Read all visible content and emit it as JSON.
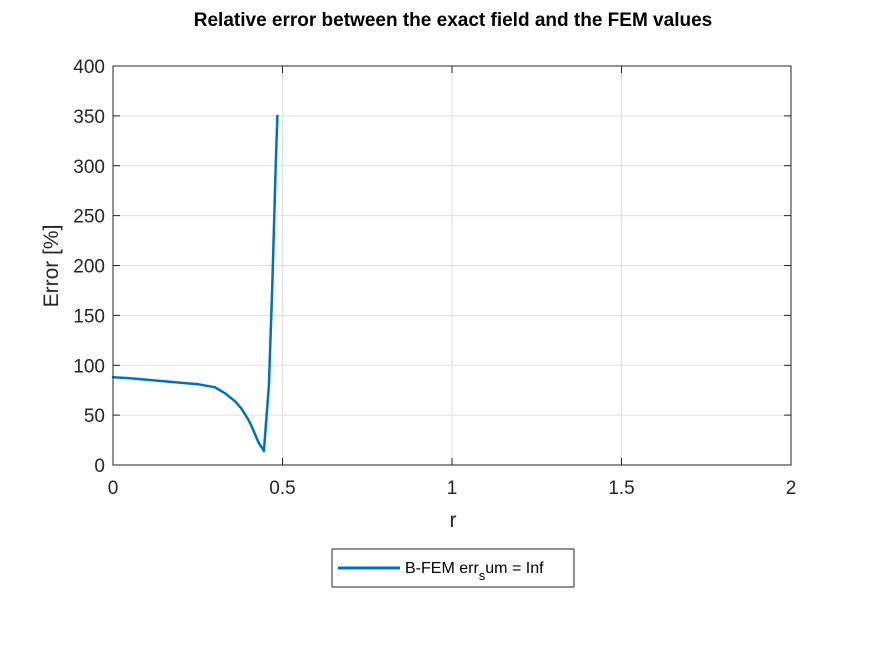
{
  "chart_data": {
    "type": "line",
    "title": "Relative error between the exact field and the FEM values",
    "xlabel": "r",
    "ylabel": "Error [%]",
    "xlim": [
      0,
      2
    ],
    "ylim": [
      0,
      400
    ],
    "xticks": [
      0,
      0.5,
      1,
      1.5,
      2
    ],
    "xtick_labels": [
      "0",
      "0.5",
      "1",
      "1.5",
      "2"
    ],
    "yticks": [
      0,
      50,
      100,
      150,
      200,
      250,
      300,
      350,
      400
    ],
    "ytick_labels": [
      "0",
      "50",
      "100",
      "150",
      "200",
      "250",
      "300",
      "350",
      "400"
    ],
    "grid": true,
    "legend_position": "below plot, centered",
    "series": [
      {
        "name": "B-FEM err_sum = Inf",
        "legend_parts": {
          "base": "B-FEM err",
          "subscript": "s",
          "rest": "um = Inf"
        },
        "color": "#0072BD",
        "x": [
          0,
          0.05,
          0.1,
          0.15,
          0.2,
          0.25,
          0.3,
          0.33,
          0.36,
          0.38,
          0.4,
          0.41,
          0.42,
          0.43,
          0.44,
          0.445,
          0.46,
          0.47,
          0.48,
          0.485
        ],
        "y": [
          88,
          87,
          85.5,
          84,
          82.5,
          81,
          78,
          72,
          64,
          56,
          45,
          38,
          30,
          22,
          17,
          14,
          80,
          180,
          300,
          350
        ]
      }
    ]
  }
}
